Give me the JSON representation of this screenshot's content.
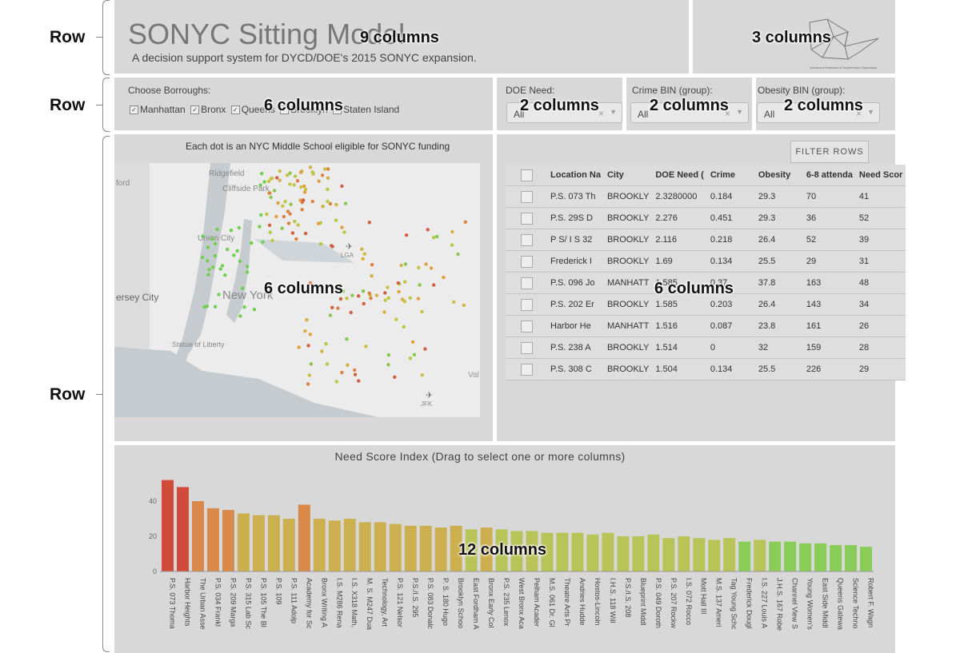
{
  "header": {
    "title": "SONYC Sitting Model",
    "subtitle": "A decision support system for DYCD/DOE's 2015 SONYC expansion.",
    "logo_text": "Advanced Research in Government Operations"
  },
  "annotations": {
    "row_label": "Row",
    "cols_9": "9 columns",
    "cols_3": "3 columns",
    "cols_6": "6 columns",
    "cols_2": "2 columns",
    "cols_12": "12 columns"
  },
  "filters": {
    "boroughs_label": "Choose Borroughs:",
    "boroughs": [
      "Manhattan",
      "Bronx",
      "Queens",
      "Brooklyn",
      "Staten Island"
    ],
    "doe_label": "DOE Need:",
    "doe_value": "All",
    "crime_label": "Crime BIN (group):",
    "crime_value": "All",
    "obesity_label": "Obesity BIN (group):",
    "obesity_value": "All"
  },
  "map": {
    "title": "Each dot is an NYC Middle School eligible for SONYC funding",
    "places": [
      "Ridgefield",
      "Cliffside Park",
      "Union City",
      "New York",
      "Statue of Liberty",
      "LGA",
      "JFK",
      "ersey City",
      "ford",
      "Val"
    ]
  },
  "table": {
    "filter_button": "FILTER ROWS",
    "columns": [
      "Location Na",
      "City",
      "DOE Need (",
      "Crime",
      "Obesity",
      "6-8 attenda",
      "Need Scor"
    ],
    "rows": [
      [
        "P.S. 073 Th",
        "BROOKLY",
        "2.3280000",
        "0.184",
        "29.3",
        "70",
        "41"
      ],
      [
        "P.S. 29S D",
        "BROOKLY",
        "2.276",
        "0.451",
        "29.3",
        "36",
        "52"
      ],
      [
        "P S/ I S 32",
        "BROOKLY",
        "2.116",
        "0.218",
        "26.4",
        "52",
        "39"
      ],
      [
        "Frederick I",
        "BROOKLY",
        "1.69",
        "0.134",
        "25.5",
        "29",
        "31"
      ],
      [
        "P.S. 096 Jo",
        "MANHATT",
        "1.585",
        "0.37",
        "37.8",
        "163",
        "48"
      ],
      [
        "P.S. 202 Er",
        "BROOKLY",
        "1.585",
        "0.203",
        "26.4",
        "143",
        "34"
      ],
      [
        "Harbor He",
        "MANHATT",
        "1.516",
        "0.087",
        "23.8",
        "161",
        "26"
      ],
      [
        "P.S. 238 A",
        "BROOKLY",
        "1.514",
        "0",
        "32",
        "159",
        "28"
      ],
      [
        "P.S. 308 C",
        "BROOKLY",
        "1.504",
        "0.134",
        "25.5",
        "226",
        "29"
      ]
    ]
  },
  "chart_data": {
    "type": "bar",
    "title": "Need Score Index (Drag to select one or more columns)",
    "ylim": [
      0,
      50
    ],
    "yticks": [
      0,
      20,
      40
    ],
    "categories": [
      "P.S. 073 Thoma",
      "Harbor Heights",
      "The Urban Asse",
      "P.S. 034 Frankl",
      "P.S. 209 Marga",
      "P.S. 315 Lab Sc",
      "P.S. 105 The Bl",
      "P.S. 109",
      "P.S. 111 Adolp",
      "Academy for Sc",
      "Bronx Writing A",
      "I.S. M286 Rena",
      "I.S. X318 Math,",
      "M. S. M247 Dua",
      "Technology, Art",
      "P.S. 121 Nelsor",
      "P.S./I.S. 295",
      "P.S. 083 Donalc",
      "P. S. 180 Hugo",
      "Brooklyn Schoo",
      "East Fordham A",
      "Bronx Early Col",
      "P.S. 235 Lenox",
      "West Bronx Aca",
      "Pelham Acader",
      "M.S. 061 Dr. Gl",
      "Theatre Arts Pr",
      "Andries Hudde",
      "Hostos-Lincoln",
      "I.H.S. 118 Will",
      "P.S./I.S. 208",
      "Blueprint Middl",
      "P.S. 049 Doroth",
      "P.S. 207 Rockw",
      "I.S. 072 Rocco",
      "Mott Hall III",
      "M.S. 137 Ameri",
      "Tag Young Schc",
      "Frederick Dougl",
      "I.S. 227 Louis A",
      "J.H.S. 167 Robe",
      "Channel View S",
      "Young Women's",
      "East Side Middl",
      "Queens Gatewa",
      "Science Techno",
      "Robert F. Wagn"
    ],
    "values": [
      52,
      48,
      40,
      36,
      35,
      33,
      32,
      32,
      30,
      38,
      30,
      29,
      30,
      28,
      28,
      27,
      26,
      26,
      25,
      26,
      24,
      25,
      24,
      23,
      23,
      22,
      22,
      22,
      21,
      22,
      20,
      20,
      21,
      19,
      20,
      19,
      18,
      19,
      17,
      18,
      17,
      17,
      16,
      16,
      15,
      15,
      14
    ]
  }
}
